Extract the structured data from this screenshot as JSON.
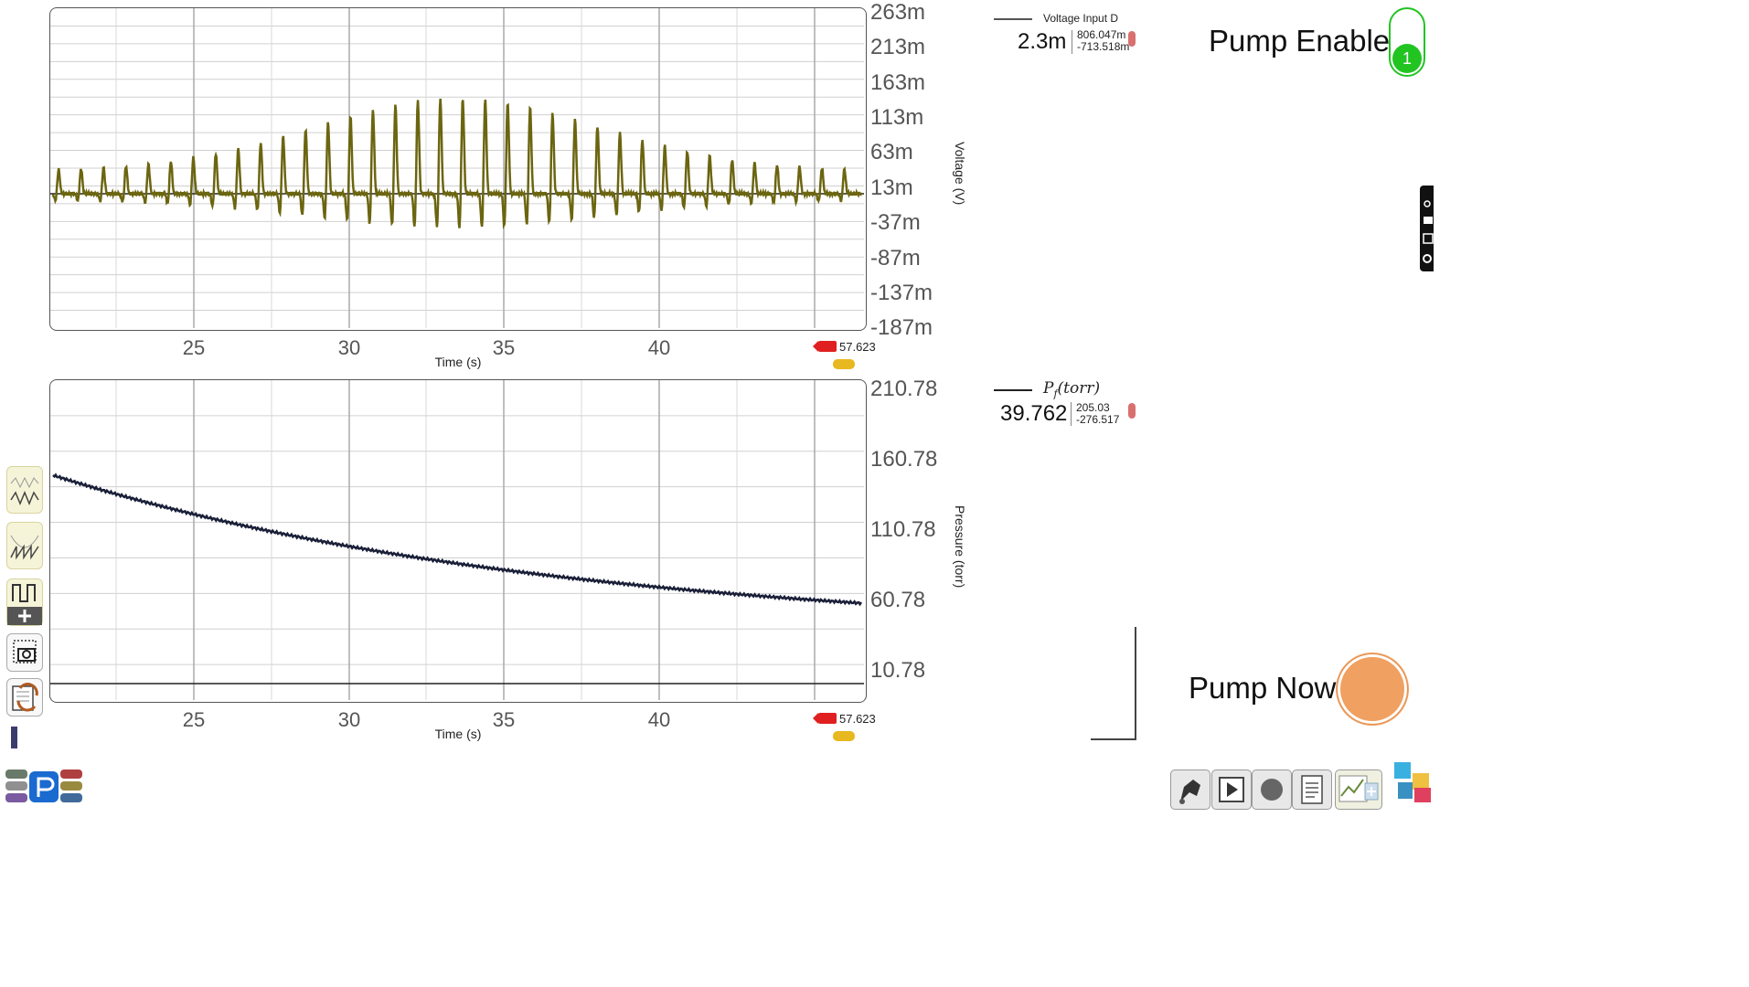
{
  "top_plot": {
    "y_ticks": [
      "263m",
      "213m",
      "163m",
      "113m",
      "63m",
      "13m",
      "-37m",
      "-87m",
      "-137m",
      "-187m"
    ],
    "x_ticks": [
      "25",
      "30",
      "35",
      "40"
    ],
    "x_title": "Time (s)",
    "y_title": "Voltage (V)",
    "cursor_value": "57.623",
    "trace_color": "#6b6510"
  },
  "bottom_plot": {
    "y_ticks": [
      "210.78",
      "160.78",
      "110.78",
      "60.78",
      "10.78"
    ],
    "x_ticks": [
      "25",
      "30",
      "35",
      "40"
    ],
    "x_title": "Time (s)",
    "y_title": "Pressure (torr)",
    "cursor_value": "57.623",
    "trace_color": "#1a1f38"
  },
  "readout_top": {
    "label": "Voltage Input D",
    "value": "2.3m",
    "max": "806.047m",
    "min": "-713.518m"
  },
  "readout_bottom": {
    "label": "P_f(torr)",
    "value": "39.762",
    "max": "205.03",
    "min": "-276.517"
  },
  "pump_enable": {
    "label": "Pump Enable",
    "state": "1",
    "color": "#22c422"
  },
  "pump_now": {
    "label": "Pump Now",
    "color": "#f0a060"
  },
  "icons": {
    "left_tools": [
      "waveform-add-icon",
      "waveform-fit-icon",
      "square-wave-add-icon",
      "screenshot-icon",
      "refresh-doc-icon"
    ],
    "bottom_tools": [
      "plug-icon",
      "play-icon",
      "record-icon",
      "notes-icon",
      "chart-add-icon",
      "puzzle-icon"
    ]
  }
}
